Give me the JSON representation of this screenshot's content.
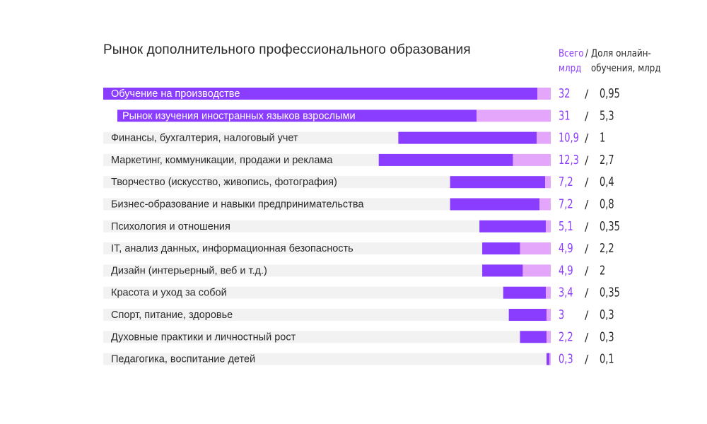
{
  "title": "Рынок дополнительного профессионального образования",
  "header": {
    "total": "Всего млрд",
    "total_line1": "Всего",
    "total_line2": "млрд",
    "slash": "/",
    "online_line1": "Доля онлайн-",
    "online_line2": "обучения, млрд"
  },
  "colors": {
    "track": "#f2f2f2",
    "total": "#8b3dff",
    "online": "#e3a6fb",
    "total_text": "#8b3dff",
    "online_text": "#2a2a2a",
    "label_dark": "#2a2a2a",
    "label_light": "#ffffff"
  },
  "chart_data": {
    "type": "bar",
    "orientation": "horizontal",
    "title": "Рынок дополнительного профессионального образования",
    "categories": [
      "Обучение на производстве",
      "Рынок изучения иностранных языков взрослыми",
      "Финансы, бухгалтерия, налоговый учет",
      "Маркетинг, коммуникации, продажи и реклама",
      "Творчество (искусство, живопись, фотография)",
      "Бизнес-образование и навыки предпринимательства",
      "Психология и отношения",
      "IT, анализ данных, информационная безопасность",
      "Дизайн (интерьерный, веб и т.д.)",
      "Красота и уход за собой",
      "Спорт, питание, здоровье",
      "Духовные практики и личностный рост",
      "Педагогика, воспитание детей"
    ],
    "series": [
      {
        "name": "Всего млрд",
        "values": [
          32,
          31,
          10.9,
          12.3,
          7.2,
          7.2,
          5.1,
          4.9,
          4.9,
          3.4,
          3,
          2.2,
          0.3
        ],
        "labels": [
          "32",
          "31",
          "10,9",
          "12,3",
          "7,2",
          "7,2",
          "5,1",
          "4,9",
          "4,9",
          "3,4",
          "3",
          "2,2",
          "0,3"
        ]
      },
      {
        "name": "Доля онлайн-обучения, млрд",
        "values": [
          0.95,
          5.3,
          1,
          2.7,
          0.4,
          0.8,
          0.35,
          2.2,
          2,
          0.35,
          0.3,
          0.3,
          0.1
        ],
        "labels": [
          "0,95",
          "5,3",
          "1",
          "2,7",
          "0,4",
          "0,8",
          "0,35",
          "2,2",
          "2",
          "0,35",
          "0,3",
          "0,3",
          "0,1"
        ]
      }
    ],
    "grid": false,
    "legend": "top-right header"
  }
}
